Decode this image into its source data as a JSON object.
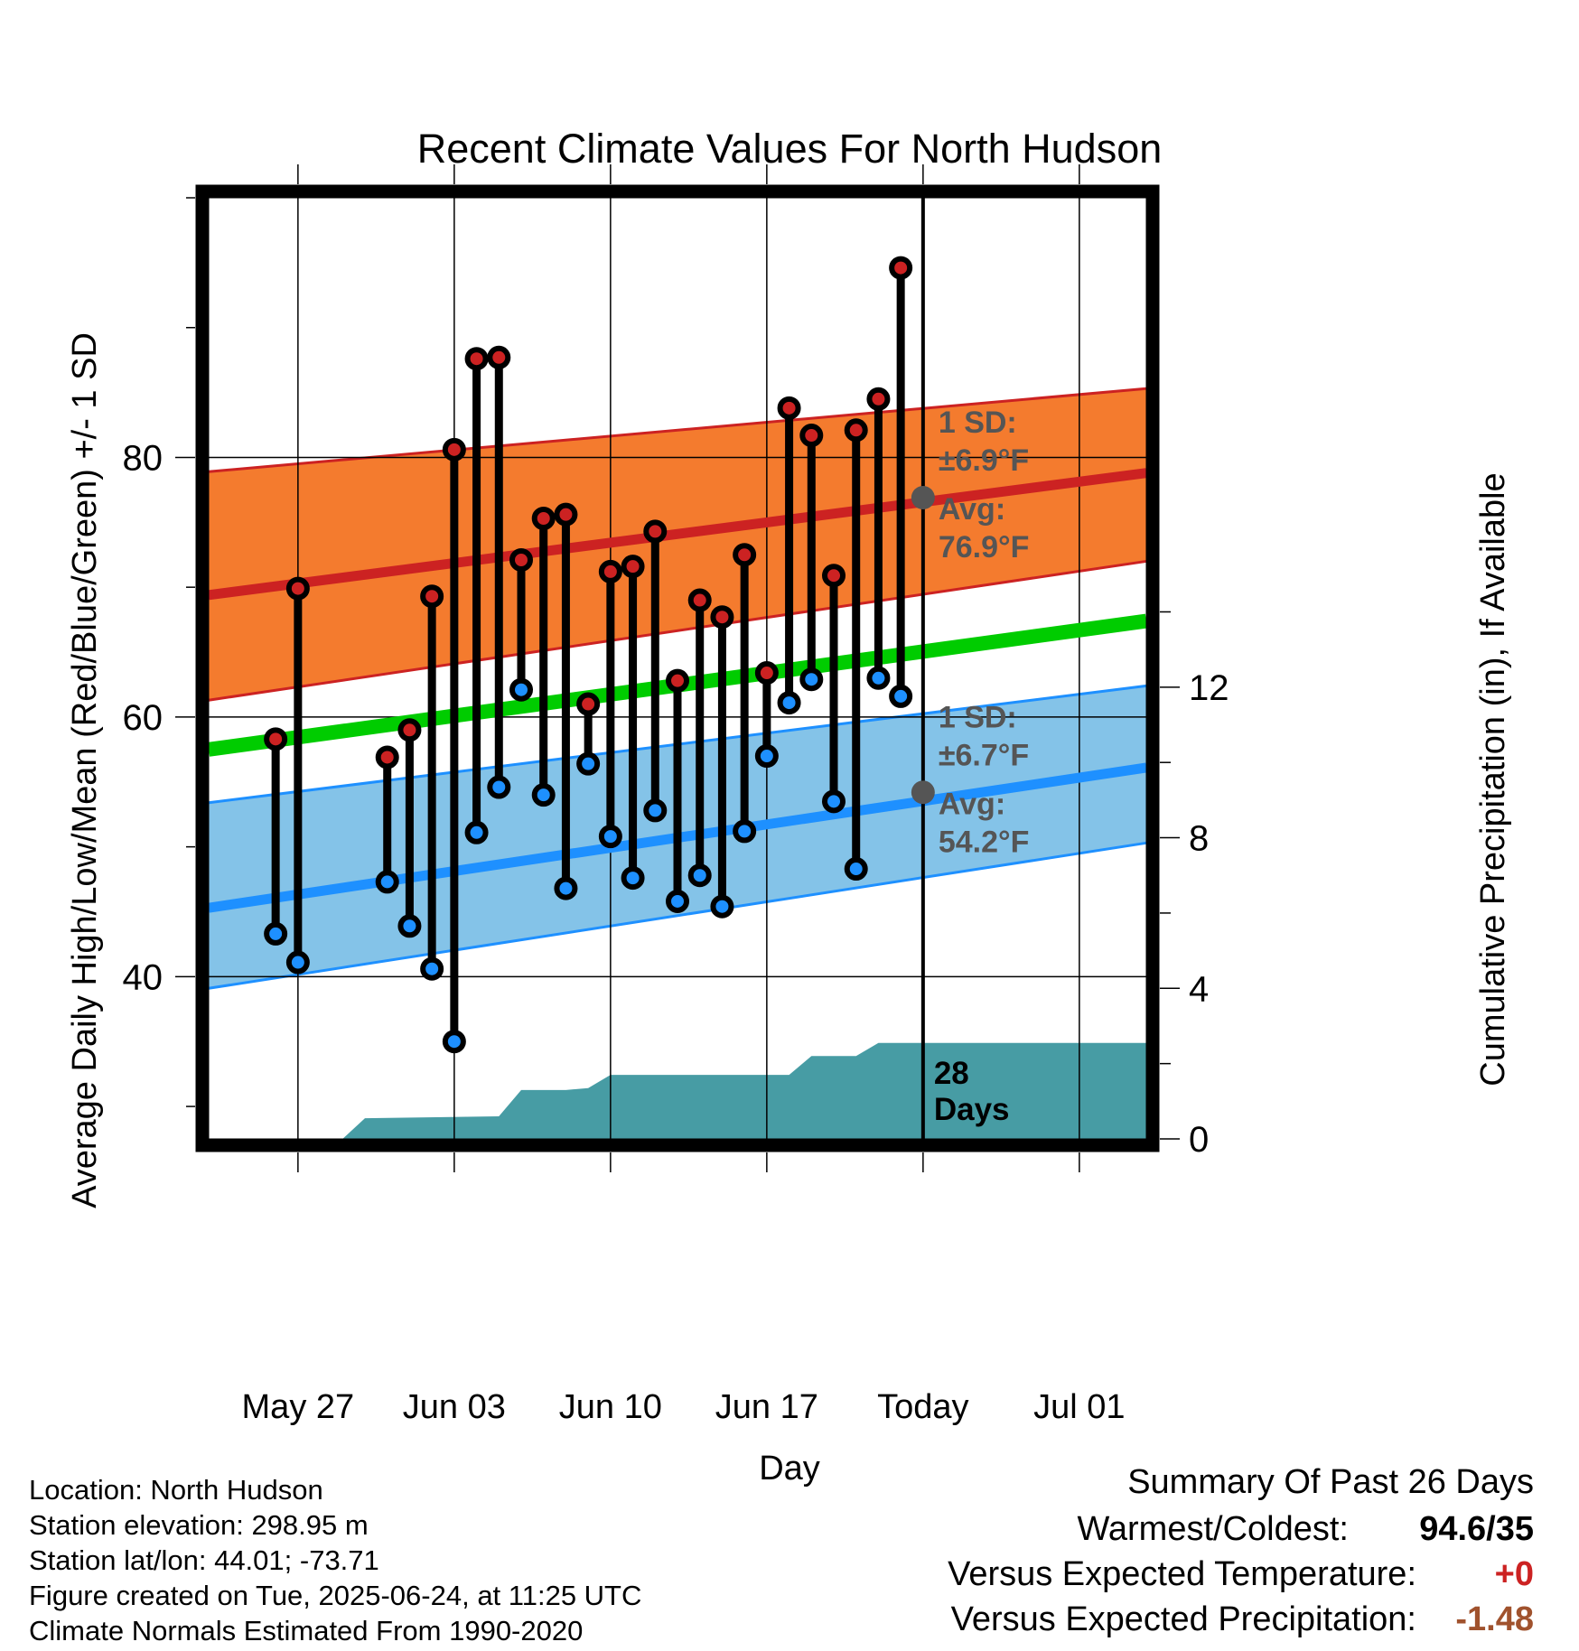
{
  "chart_data": {
    "type": "line",
    "title": "Recent Climate Values For North Hudson",
    "xlabel": "Day",
    "ylabel": "Average Daily High/Low/Mean (Red/Blue/Green) +/- 1 SD",
    "y2label": "Cumulative Precipitation (in), If Available",
    "xlim": [
      "2025-05-23",
      "2025-07-04"
    ],
    "ylim": [
      27.5,
      100
    ],
    "y_ticks": [
      40,
      60,
      80
    ],
    "y2lim": [
      0,
      25
    ],
    "y2_ticks": [
      0,
      4,
      8,
      12
    ],
    "x_ticks": [
      {
        "date": "2025-05-27",
        "label": "May 27"
      },
      {
        "date": "2025-06-03",
        "label": "Jun 03"
      },
      {
        "date": "2025-06-10",
        "label": "Jun 10"
      },
      {
        "date": "2025-06-17",
        "label": "Jun 17"
      },
      {
        "date": "2025-06-24",
        "label": "Today"
      },
      {
        "date": "2025-07-01",
        "label": "Jul 01"
      }
    ],
    "grid": true,
    "today": "2025-06-24",
    "colors": {
      "high": "#cc2222",
      "high_band": "#f47b2e",
      "low": "#1e90ff",
      "low_band": "#84c3e8",
      "mean": "#00cc00",
      "precip": "#479ca4",
      "marker_today": "#555555",
      "annotation": "#555555"
    },
    "normals": {
      "x": [
        "2025-05-23",
        "2025-07-04"
      ],
      "high_avg": [
        69.4,
        78.8
      ],
      "high_upper": [
        78.9,
        85.3
      ],
      "high_lower": [
        61.3,
        72.0
      ],
      "mean": [
        57.5,
        67.4
      ],
      "low_avg": [
        45.3,
        56.1
      ],
      "low_upper": [
        53.4,
        62.4
      ],
      "low_lower": [
        39.1,
        50.3
      ]
    },
    "daily": [
      {
        "date": "2025-05-26",
        "high": 58.3,
        "low": 43.3
      },
      {
        "date": "2025-05-27",
        "high": 69.9,
        "low": 41.1
      },
      {
        "date": "2025-05-31",
        "high": 56.9,
        "low": 47.3
      },
      {
        "date": "2025-06-01",
        "high": 59.0,
        "low": 43.9
      },
      {
        "date": "2025-06-02",
        "high": 69.3,
        "low": 40.6
      },
      {
        "date": "2025-06-03",
        "high": 80.6,
        "low": 35.0
      },
      {
        "date": "2025-06-04",
        "high": 87.6,
        "low": 51.1
      },
      {
        "date": "2025-06-05",
        "high": 87.7,
        "low": 54.6
      },
      {
        "date": "2025-06-06",
        "high": 72.1,
        "low": 62.1
      },
      {
        "date": "2025-06-07",
        "high": 75.3,
        "low": 54.0
      },
      {
        "date": "2025-06-08",
        "high": 75.6,
        "low": 46.8
      },
      {
        "date": "2025-06-09",
        "high": 61.0,
        "low": 56.4
      },
      {
        "date": "2025-06-10",
        "high": 71.2,
        "low": 50.8
      },
      {
        "date": "2025-06-11",
        "high": 71.6,
        "low": 47.6
      },
      {
        "date": "2025-06-12",
        "high": 74.3,
        "low": 52.8
      },
      {
        "date": "2025-06-13",
        "high": 62.8,
        "low": 45.8
      },
      {
        "date": "2025-06-14",
        "high": 69.0,
        "low": 47.8
      },
      {
        "date": "2025-06-15",
        "high": 67.7,
        "low": 45.4
      },
      {
        "date": "2025-06-16",
        "high": 72.5,
        "low": 51.2
      },
      {
        "date": "2025-06-17",
        "high": 63.4,
        "low": 57.0
      },
      {
        "date": "2025-06-18",
        "high": 83.8,
        "low": 61.1
      },
      {
        "date": "2025-06-19",
        "high": 81.7,
        "low": 62.9
      },
      {
        "date": "2025-06-20",
        "high": 70.9,
        "low": 53.5
      },
      {
        "date": "2025-06-21",
        "high": 82.1,
        "low": 48.3
      },
      {
        "date": "2025-06-22",
        "high": 84.5,
        "low": 63.0
      },
      {
        "date": "2025-06-23",
        "high": 94.6,
        "low": 61.6
      }
    ],
    "precip_cumulative": [
      {
        "date": "2025-05-23",
        "value": 0
      },
      {
        "date": "2025-05-29",
        "value": 0
      },
      {
        "date": "2025-05-30",
        "value": 0.55
      },
      {
        "date": "2025-06-05",
        "value": 0.6
      },
      {
        "date": "2025-06-06",
        "value": 1.3
      },
      {
        "date": "2025-06-08",
        "value": 1.3
      },
      {
        "date": "2025-06-09",
        "value": 1.35
      },
      {
        "date": "2025-06-10",
        "value": 1.7
      },
      {
        "date": "2025-06-18",
        "value": 1.7
      },
      {
        "date": "2025-06-19",
        "value": 2.2
      },
      {
        "date": "2025-06-21",
        "value": 2.2
      },
      {
        "date": "2025-06-22",
        "value": 2.55
      },
      {
        "date": "2025-07-04",
        "value": 2.55
      }
    ],
    "annotations": {
      "high_sd": "1 SD:",
      "high_sd_value": "±6.9°F",
      "high_avg_label": "Avg:",
      "high_avg_value": "76.9°F",
      "high_avg_today": 76.9,
      "low_sd": "1 SD:",
      "low_sd_value": "±6.7°F",
      "low_avg_label": "Avg:",
      "low_avg_value": "54.2°F",
      "low_avg_today": 54.2,
      "days_number": "28",
      "days_word": "Days"
    }
  },
  "info": {
    "location": "Location: North Hudson",
    "elevation": "Station elevation: 298.95 m",
    "latlon": "Station lat/lon: 44.01; -73.71",
    "created": "Figure created on Tue, 2025-06-24, at 11:25 UTC",
    "normals": "Climate Normals Estimated From 1990-2020"
  },
  "summary": {
    "title": "Summary Of Past 26 Days",
    "warmest_label": "Warmest/Coldest:",
    "warmest_value": "94.6/35",
    "temp_label": "Versus Expected Temperature:",
    "temp_value": "+0",
    "temp_color": "#cc2222",
    "precip_label": "Versus Expected Precipitation:",
    "precip_value": "-1.48",
    "precip_color": "#a0522d"
  }
}
